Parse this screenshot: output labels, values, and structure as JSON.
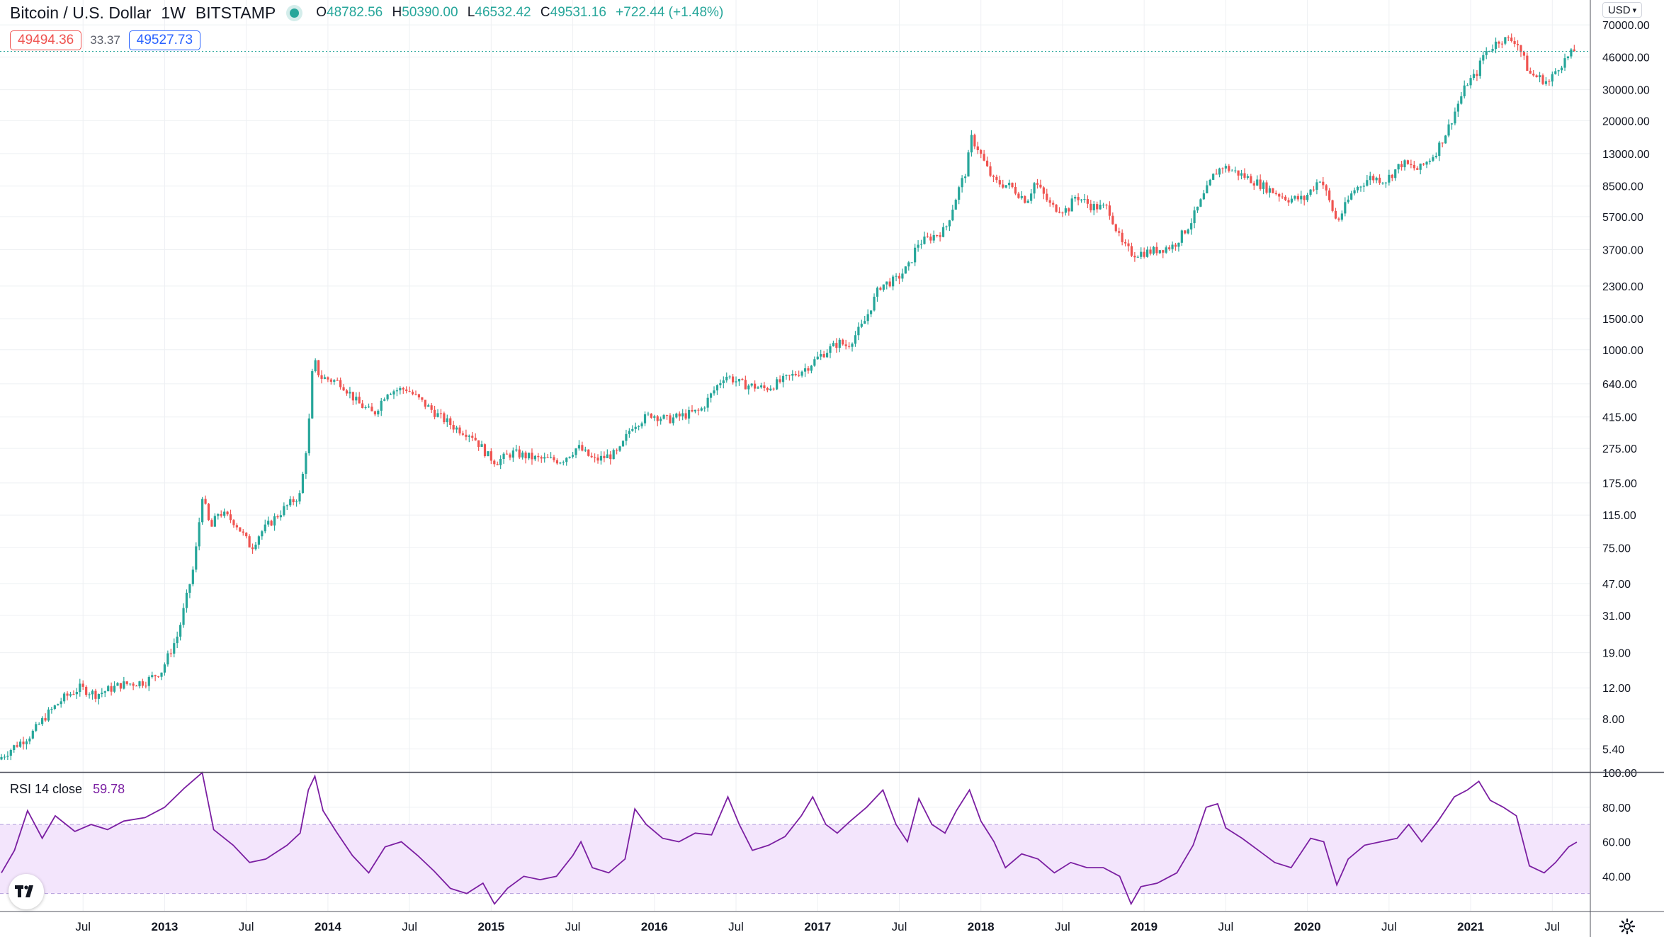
{
  "header": {
    "symbol": "Bitcoin / U.S. Dollar",
    "interval": "1W",
    "exchange": "BITSTAMP",
    "status_color": "#26a69a",
    "ohlc": {
      "o_label": "O",
      "o": "48782.56",
      "h_label": "H",
      "h": "50390.00",
      "l_label": "L",
      "l": "46532.42",
      "c_label": "C",
      "c": "49531.16",
      "change": "+722.44 (+1.48%)"
    }
  },
  "quote": {
    "bid": "49494.36",
    "spread": "33.37",
    "ask": "49527.73"
  },
  "currency_button": "USD",
  "price_axis": {
    "labels": [
      "70000.00",
      "46000.00",
      "30000.00",
      "20000.00",
      "13000.00",
      "8500.00",
      "5700.00",
      "3700.00",
      "2300.00",
      "1500.00",
      "1000.00",
      "640.00",
      "415.00",
      "275.00",
      "175.00",
      "115.00",
      "75.00",
      "47.00",
      "31.00",
      "19.00",
      "12.00",
      "8.00",
      "5.40"
    ]
  },
  "rsi": {
    "name": "RSI 14 close",
    "value": "59.78",
    "labels": [
      "100.00",
      "80.00",
      "60.00",
      "40.00"
    ],
    "upper": 70,
    "lower": 30,
    "color": "#7b1fa2"
  },
  "time_axis": {
    "labels": [
      {
        "t": "Jul",
        "d": 2012.5,
        "bold": false
      },
      {
        "t": "2013",
        "d": 2013.0,
        "bold": true
      },
      {
        "t": "Jul",
        "d": 2013.5,
        "bold": false
      },
      {
        "t": "2014",
        "d": 2014.0,
        "bold": true
      },
      {
        "t": "Jul",
        "d": 2014.5,
        "bold": false
      },
      {
        "t": "2015",
        "d": 2015.0,
        "bold": true
      },
      {
        "t": "Jul",
        "d": 2015.5,
        "bold": false
      },
      {
        "t": "2016",
        "d": 2016.0,
        "bold": true
      },
      {
        "t": "Jul",
        "d": 2016.5,
        "bold": false
      },
      {
        "t": "2017",
        "d": 2017.0,
        "bold": true
      },
      {
        "t": "Jul",
        "d": 2017.5,
        "bold": false
      },
      {
        "t": "2018",
        "d": 2018.0,
        "bold": true
      },
      {
        "t": "Jul",
        "d": 2018.5,
        "bold": false
      },
      {
        "t": "2019",
        "d": 2019.0,
        "bold": true
      },
      {
        "t": "Jul",
        "d": 2019.5,
        "bold": false
      },
      {
        "t": "2020",
        "d": 2020.0,
        "bold": true
      },
      {
        "t": "Jul",
        "d": 2020.5,
        "bold": false
      },
      {
        "t": "2021",
        "d": 2021.0,
        "bold": true
      },
      {
        "t": "Jul",
        "d": 2021.5,
        "bold": false
      }
    ]
  },
  "colors": {
    "up": "#26a69a",
    "down": "#ef5350",
    "grid": "#eef0f3",
    "rsi_band": "#f3e5fc"
  },
  "chart_data": [
    {
      "type": "candlestick",
      "title": "Bitcoin / U.S. Dollar",
      "scale": "log",
      "ylim": [
        4.3,
        90000
      ],
      "xlim": [
        2012.0,
        2021.72
      ],
      "grid": true,
      "series": [
        {
          "points": [
            [
              2012.0,
              4.7
            ],
            [
              2012.1,
              5.6
            ],
            [
              2012.2,
              6.5
            ],
            [
              2012.3,
              8.5
            ],
            [
              2012.4,
              10.5
            ],
            [
              2012.5,
              12
            ],
            [
              2012.6,
              11
            ],
            [
              2012.75,
              12.5
            ],
            [
              2012.9,
              13
            ],
            [
              2013.0,
              15
            ],
            [
              2013.1,
              24
            ],
            [
              2013.2,
              60
            ],
            [
              2013.25,
              150
            ],
            [
              2013.3,
              95
            ],
            [
              2013.35,
              120
            ],
            [
              2013.45,
              105
            ],
            [
              2013.55,
              75
            ],
            [
              2013.6,
              90
            ],
            [
              2013.75,
              125
            ],
            [
              2013.85,
              150
            ],
            [
              2013.9,
              350
            ],
            [
              2013.93,
              900
            ],
            [
              2013.97,
              700
            ],
            [
              2014.1,
              650
            ],
            [
              2014.2,
              500
            ],
            [
              2014.3,
              430
            ],
            [
              2014.38,
              580
            ],
            [
              2014.5,
              600
            ],
            [
              2014.6,
              500
            ],
            [
              2014.7,
              420
            ],
            [
              2014.8,
              360
            ],
            [
              2014.9,
              330
            ],
            [
              2015.0,
              250
            ],
            [
              2015.05,
              230
            ],
            [
              2015.15,
              260
            ],
            [
              2015.3,
              240
            ],
            [
              2015.45,
              235
            ],
            [
              2015.55,
              280
            ],
            [
              2015.65,
              235
            ],
            [
              2015.8,
              260
            ],
            [
              2015.88,
              370
            ],
            [
              2016.0,
              430
            ],
            [
              2016.1,
              400
            ],
            [
              2016.3,
              450
            ],
            [
              2016.45,
              720
            ],
            [
              2016.55,
              640
            ],
            [
              2016.7,
              600
            ],
            [
              2016.85,
              700
            ],
            [
              2016.95,
              790
            ],
            [
              2017.05,
              950
            ],
            [
              2017.15,
              1100
            ],
            [
              2017.2,
              1050
            ],
            [
              2017.3,
              1400
            ],
            [
              2017.4,
              2300
            ],
            [
              2017.5,
              2500
            ],
            [
              2017.58,
              3000
            ],
            [
              2017.63,
              4000
            ],
            [
              2017.7,
              4300
            ],
            [
              2017.8,
              4800
            ],
            [
              2017.88,
              8000
            ],
            [
              2017.93,
              10500
            ],
            [
              2017.96,
              16000
            ],
            [
              2018.0,
              14000
            ],
            [
              2018.05,
              11000
            ],
            [
              2018.1,
              9000
            ],
            [
              2018.2,
              8500
            ],
            [
              2018.3,
              7000
            ],
            [
              2018.35,
              9000
            ],
            [
              2018.45,
              6500
            ],
            [
              2018.55,
              6200
            ],
            [
              2018.6,
              7500
            ],
            [
              2018.7,
              6500
            ],
            [
              2018.8,
              6400
            ],
            [
              2018.88,
              4000
            ],
            [
              2018.95,
              3500
            ],
            [
              2019.05,
              3600
            ],
            [
              2019.2,
              3900
            ],
            [
              2019.3,
              5200
            ],
            [
              2019.4,
              8000
            ],
            [
              2019.45,
              10000
            ],
            [
              2019.5,
              11000
            ],
            [
              2019.6,
              10000
            ],
            [
              2019.7,
              9000
            ],
            [
              2019.8,
              8000
            ],
            [
              2019.9,
              7200
            ],
            [
              2020.0,
              7200
            ],
            [
              2020.1,
              9500
            ],
            [
              2020.2,
              5300
            ],
            [
              2020.3,
              8000
            ],
            [
              2020.4,
              9500
            ],
            [
              2020.5,
              9200
            ],
            [
              2020.6,
              11500
            ],
            [
              2020.7,
              10500
            ],
            [
              2020.8,
              13000
            ],
            [
              2020.88,
              18000
            ],
            [
              2020.95,
              26000
            ],
            [
              2021.0,
              33000
            ],
            [
              2021.05,
              36000
            ],
            [
              2021.1,
              48000
            ],
            [
              2021.2,
              58000
            ],
            [
              2021.3,
              57000
            ],
            [
              2021.38,
              37000
            ],
            [
              2021.5,
              33000
            ],
            [
              2021.55,
              40000
            ],
            [
              2021.65,
              49531
            ]
          ]
        }
      ]
    },
    {
      "type": "line",
      "title": "RSI 14 close",
      "ylim": [
        20,
        100
      ],
      "grid": true,
      "series": [
        {
          "name": "RSI 14 close",
          "points": [
            [
              2012.0,
              42
            ],
            [
              2012.08,
              55
            ],
            [
              2012.16,
              78
            ],
            [
              2012.25,
              62
            ],
            [
              2012.33,
              75
            ],
            [
              2012.45,
              66
            ],
            [
              2012.55,
              70
            ],
            [
              2012.65,
              67
            ],
            [
              2012.75,
              72
            ],
            [
              2012.88,
              74
            ],
            [
              2013.0,
              80
            ],
            [
              2013.12,
              91
            ],
            [
              2013.23,
              100
            ],
            [
              2013.3,
              67
            ],
            [
              2013.42,
              58
            ],
            [
              2013.52,
              48
            ],
            [
              2013.62,
              50
            ],
            [
              2013.75,
              58
            ],
            [
              2013.83,
              65
            ],
            [
              2013.88,
              90
            ],
            [
              2013.92,
              98
            ],
            [
              2013.97,
              78
            ],
            [
              2014.05,
              66
            ],
            [
              2014.15,
              52
            ],
            [
              2014.25,
              42
            ],
            [
              2014.35,
              57
            ],
            [
              2014.45,
              60
            ],
            [
              2014.55,
              52
            ],
            [
              2014.65,
              43
            ],
            [
              2014.75,
              33
            ],
            [
              2014.85,
              30
            ],
            [
              2014.95,
              36
            ],
            [
              2015.02,
              24
            ],
            [
              2015.1,
              33
            ],
            [
              2015.2,
              40
            ],
            [
              2015.3,
              38
            ],
            [
              2015.4,
              40
            ],
            [
              2015.5,
              52
            ],
            [
              2015.55,
              60
            ],
            [
              2015.62,
              45
            ],
            [
              2015.72,
              42
            ],
            [
              2015.82,
              50
            ],
            [
              2015.88,
              79
            ],
            [
              2015.95,
              70
            ],
            [
              2016.05,
              62
            ],
            [
              2016.15,
              60
            ],
            [
              2016.25,
              65
            ],
            [
              2016.35,
              64
            ],
            [
              2016.45,
              86
            ],
            [
              2016.52,
              70
            ],
            [
              2016.6,
              55
            ],
            [
              2016.7,
              58
            ],
            [
              2016.8,
              63
            ],
            [
              2016.9,
              75
            ],
            [
              2016.97,
              86
            ],
            [
              2017.05,
              70
            ],
            [
              2017.12,
              65
            ],
            [
              2017.2,
              72
            ],
            [
              2017.3,
              80
            ],
            [
              2017.4,
              90
            ],
            [
              2017.48,
              70
            ],
            [
              2017.55,
              60
            ],
            [
              2017.62,
              85
            ],
            [
              2017.7,
              70
            ],
            [
              2017.78,
              65
            ],
            [
              2017.85,
              78
            ],
            [
              2017.93,
              90
            ],
            [
              2018.0,
              72
            ],
            [
              2018.08,
              60
            ],
            [
              2018.15,
              45
            ],
            [
              2018.25,
              53
            ],
            [
              2018.35,
              50
            ],
            [
              2018.45,
              42
            ],
            [
              2018.55,
              48
            ],
            [
              2018.65,
              45
            ],
            [
              2018.75,
              45
            ],
            [
              2018.85,
              40
            ],
            [
              2018.92,
              24
            ],
            [
              2018.98,
              34
            ],
            [
              2019.08,
              36
            ],
            [
              2019.2,
              42
            ],
            [
              2019.3,
              58
            ],
            [
              2019.38,
              80
            ],
            [
              2019.45,
              82
            ],
            [
              2019.5,
              68
            ],
            [
              2019.6,
              62
            ],
            [
              2019.7,
              55
            ],
            [
              2019.8,
              48
            ],
            [
              2019.9,
              45
            ],
            [
              2020.02,
              62
            ],
            [
              2020.1,
              60
            ],
            [
              2020.18,
              35
            ],
            [
              2020.25,
              50
            ],
            [
              2020.35,
              58
            ],
            [
              2020.45,
              60
            ],
            [
              2020.55,
              62
            ],
            [
              2020.62,
              70
            ],
            [
              2020.7,
              60
            ],
            [
              2020.8,
              72
            ],
            [
              2020.9,
              86
            ],
            [
              2020.98,
              90
            ],
            [
              2021.05,
              95
            ],
            [
              2021.12,
              84
            ],
            [
              2021.2,
              80
            ],
            [
              2021.28,
              75
            ],
            [
              2021.36,
              46
            ],
            [
              2021.45,
              42
            ],
            [
              2021.52,
              48
            ],
            [
              2021.6,
              57
            ],
            [
              2021.65,
              59.78
            ]
          ]
        }
      ]
    }
  ]
}
